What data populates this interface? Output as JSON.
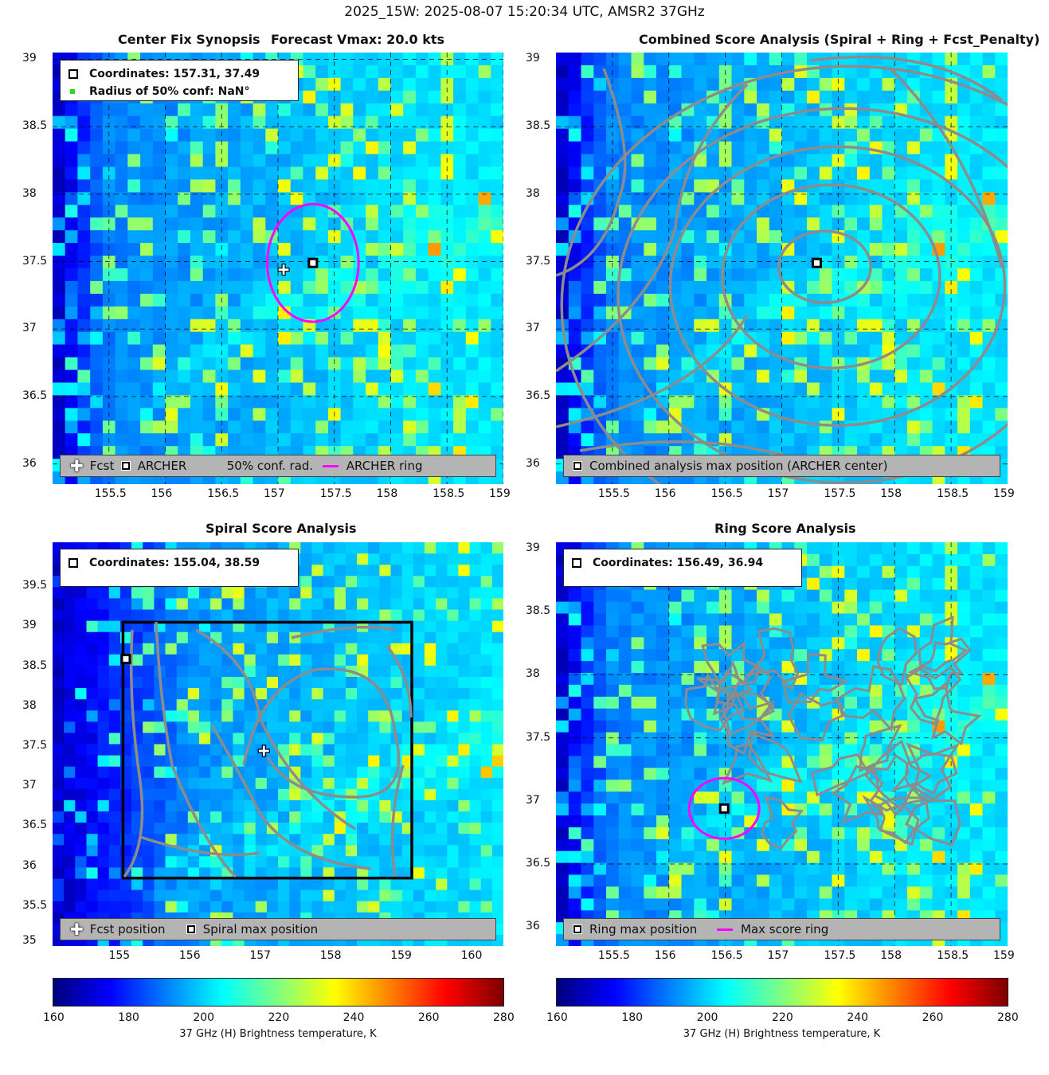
{
  "title": "2025_15W: 2025-08-07 15:20:34 UTC, AMSR2 37GHz",
  "colors": {
    "archer_ring": "#ff00ff",
    "contour": "#8c8c8c",
    "legend_bg": "#b4b4b4",
    "conf_dot": "#22dd22"
  },
  "panels": {
    "synopsis": {
      "title_left": "Center Fix Synopsis",
      "title_right": "Forecast Vmax: 20.0 kts",
      "info": {
        "coordinates": "Coordinates: 157.31, 37.49",
        "radius": "Radius of 50% conf: NaN°"
      },
      "legend": {
        "fcst": "Fcst",
        "archer": "ARCHER",
        "conf": "50% conf. rad.",
        "ring": "ARCHER ring"
      },
      "xticks": [
        "155.5",
        "156",
        "156.5",
        "157",
        "157.5",
        "158",
        "158.5",
        "159"
      ],
      "yticks": [
        "39",
        "38.5",
        "38",
        "37.5",
        "37",
        "36.5",
        "36"
      ],
      "fcst_position": {
        "lon": 157.05,
        "lat": 37.44
      },
      "archer_center": {
        "lon": 157.31,
        "lat": 37.49
      },
      "ring_radius_deg": 0.45
    },
    "combined": {
      "title": "Combined Score Analysis (Spiral + Ring + Fcst_Penalty)",
      "legend": {
        "max": "Combined analysis max position (ARCHER center)"
      },
      "xticks": [
        "155.5",
        "156",
        "156.5",
        "157",
        "157.5",
        "158",
        "158.5",
        "159"
      ],
      "yticks": [
        "39",
        "38.5",
        "38",
        "37.5",
        "37",
        "36.5",
        "36"
      ],
      "archer_center": {
        "lon": 157.31,
        "lat": 37.49
      }
    },
    "spiral": {
      "title": "Spiral Score Analysis",
      "info": {
        "coordinates": "Coordinates: 155.04, 38.59"
      },
      "legend": {
        "fcst": "Fcst position",
        "max": "Spiral max position"
      },
      "xticks": [
        "155",
        "156",
        "157",
        "158",
        "159",
        "160"
      ],
      "yticks": [
        "39.5",
        "39",
        "38.5",
        "38",
        "37.5",
        "37",
        "36.5",
        "36",
        "35.5",
        "35"
      ],
      "fcst_position": {
        "lon": 157.0,
        "lat": 37.44
      },
      "max_position": {
        "lon": 155.04,
        "lat": 38.59
      }
    },
    "ring": {
      "title": "Ring Score Analysis",
      "info": {
        "coordinates": "Coordinates: 156.49, 36.94"
      },
      "legend": {
        "max": "Ring max position",
        "ring": "Max score ring"
      },
      "xticks": [
        "155.5",
        "156",
        "156.5",
        "157",
        "157.5",
        "158",
        "158.5",
        "159"
      ],
      "yticks": [
        "39",
        "38.5",
        "38",
        "37.5",
        "37",
        "36.5",
        "36"
      ],
      "max_position": {
        "lon": 156.49,
        "lat": 36.94
      }
    }
  },
  "colorbar": {
    "label": "37 GHz (H) Brightness temperature, K",
    "ticks": [
      "160",
      "180",
      "200",
      "220",
      "240",
      "260",
      "280"
    ],
    "range": [
      160,
      280
    ]
  },
  "chart_data": [
    {
      "type": "heatmap",
      "title": "Center Fix Synopsis",
      "subtitle": "Forecast Vmax: 20.0 kts",
      "xlim": [
        155.0,
        159.0
      ],
      "ylim": [
        35.85,
        39.05
      ],
      "markers": [
        {
          "name": "Fcst",
          "lon": 157.05,
          "lat": 37.44
        },
        {
          "name": "ARCHER",
          "lon": 157.31,
          "lat": 37.49
        }
      ],
      "ring": {
        "lon": 157.31,
        "lat": 37.49,
        "radius_deg": 0.45
      },
      "colorbar_range": [
        160,
        280
      ]
    },
    {
      "type": "heatmap",
      "title": "Combined Score Analysis (Spiral + Ring + Fcst_Penalty)",
      "xlim": [
        155.0,
        159.0
      ],
      "ylim": [
        35.85,
        39.05
      ],
      "markers": [
        {
          "name": "ARCHER center",
          "lon": 157.31,
          "lat": 37.49
        }
      ],
      "colorbar_range": [
        160,
        280
      ]
    },
    {
      "type": "heatmap",
      "title": "Spiral Score Analysis",
      "xlim": [
        154.0,
        160.4
      ],
      "ylim": [
        35.0,
        40.05
      ],
      "markers": [
        {
          "name": "Fcst position",
          "lon": 157.0,
          "lat": 37.44
        },
        {
          "name": "Spiral max position",
          "lon": 155.04,
          "lat": 38.59
        }
      ],
      "box": {
        "lon": [
          155.0,
          159.1
        ],
        "lat": [
          35.85,
          39.05
        ]
      },
      "colorbar_range": [
        160,
        280
      ]
    },
    {
      "type": "heatmap",
      "title": "Ring Score Analysis",
      "xlim": [
        155.0,
        159.0
      ],
      "ylim": [
        35.85,
        39.05
      ],
      "markers": [
        {
          "name": "Ring max position",
          "lon": 156.49,
          "lat": 36.94
        }
      ],
      "ring": {
        "lon": 156.49,
        "lat": 36.94,
        "radius_deg": 0.27
      },
      "colorbar_range": [
        160,
        280
      ]
    }
  ]
}
